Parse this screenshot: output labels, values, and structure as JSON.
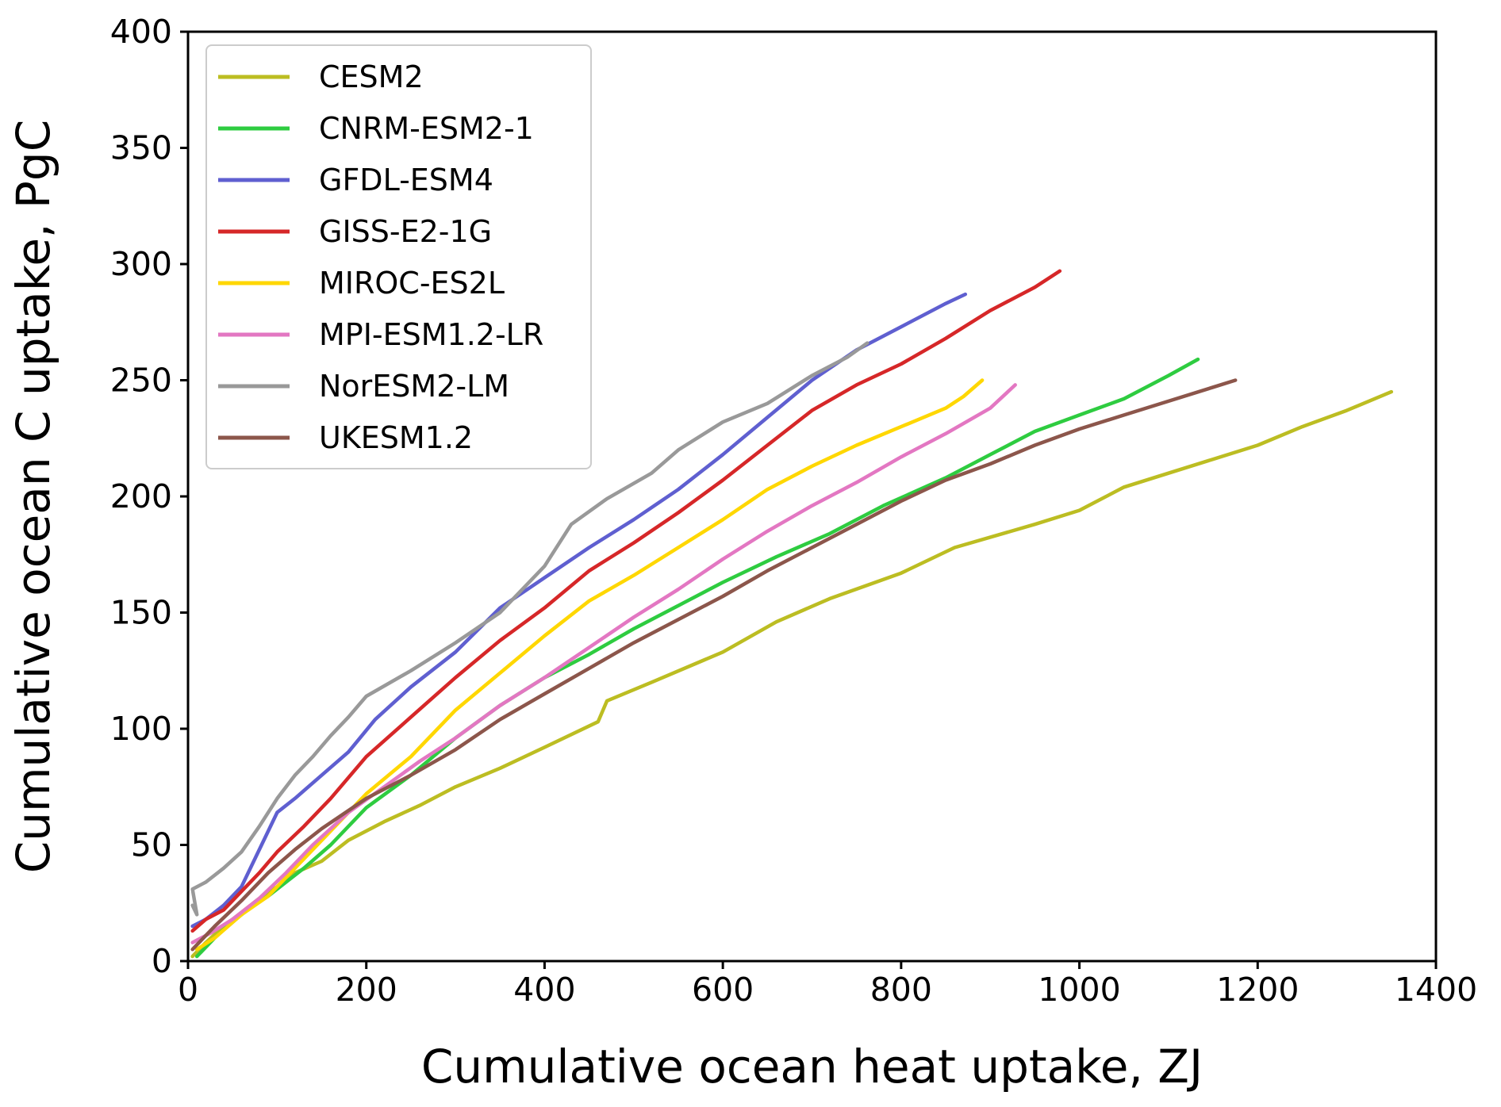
{
  "chart_data": {
    "type": "line",
    "xlabel": "Cumulative ocean heat uptake, ZJ",
    "ylabel": "Cumulative ocean C uptake, PgC",
    "xlim": [
      0,
      1400
    ],
    "ylim": [
      0,
      400
    ],
    "xticks": [
      0,
      200,
      400,
      600,
      800,
      1000,
      1200,
      1400
    ],
    "yticks": [
      0,
      50,
      100,
      150,
      200,
      250,
      300,
      350,
      400
    ],
    "grid": false,
    "legend_position": "upper-left",
    "series": [
      {
        "name": "CESM2",
        "color": "#bcbd22",
        "points": [
          [
            5,
            2
          ],
          [
            20,
            8
          ],
          [
            40,
            15
          ],
          [
            60,
            21
          ],
          [
            80,
            27
          ],
          [
            100,
            32
          ],
          [
            120,
            38
          ],
          [
            150,
            43
          ],
          [
            180,
            52
          ],
          [
            220,
            60
          ],
          [
            260,
            67
          ],
          [
            300,
            75
          ],
          [
            350,
            83
          ],
          [
            400,
            92
          ],
          [
            460,
            103
          ],
          [
            470,
            112
          ],
          [
            520,
            120
          ],
          [
            600,
            133
          ],
          [
            660,
            146
          ],
          [
            720,
            156
          ],
          [
            800,
            167
          ],
          [
            860,
            178
          ],
          [
            950,
            188
          ],
          [
            1000,
            194
          ],
          [
            1050,
            204
          ],
          [
            1100,
            210
          ],
          [
            1150,
            216
          ],
          [
            1200,
            222
          ],
          [
            1250,
            230
          ],
          [
            1300,
            237
          ],
          [
            1350,
            245
          ]
        ]
      },
      {
        "name": "CNRM-ESM2-1",
        "color": "#2ecc40",
        "points": [
          [
            10,
            2
          ],
          [
            30,
            10
          ],
          [
            50,
            17
          ],
          [
            70,
            23
          ],
          [
            90,
            28
          ],
          [
            110,
            34
          ],
          [
            130,
            40
          ],
          [
            160,
            50
          ],
          [
            200,
            66
          ],
          [
            250,
            80
          ],
          [
            300,
            96
          ],
          [
            350,
            110
          ],
          [
            400,
            122
          ],
          [
            450,
            132
          ],
          [
            500,
            143
          ],
          [
            550,
            153
          ],
          [
            600,
            163
          ],
          [
            660,
            174
          ],
          [
            720,
            184
          ],
          [
            780,
            196
          ],
          [
            850,
            208
          ],
          [
            900,
            218
          ],
          [
            950,
            228
          ],
          [
            1000,
            235
          ],
          [
            1050,
            242
          ],
          [
            1100,
            252
          ],
          [
            1133,
            259
          ]
        ]
      },
      {
        "name": "GFDL-ESM4",
        "color": "#5f5fd0",
        "points": [
          [
            5,
            15
          ],
          [
            20,
            18
          ],
          [
            40,
            24
          ],
          [
            60,
            32
          ],
          [
            80,
            48
          ],
          [
            100,
            64
          ],
          [
            120,
            70
          ],
          [
            150,
            80
          ],
          [
            180,
            90
          ],
          [
            210,
            104
          ],
          [
            250,
            118
          ],
          [
            300,
            133
          ],
          [
            350,
            152
          ],
          [
            400,
            165
          ],
          [
            450,
            178
          ],
          [
            500,
            190
          ],
          [
            550,
            203
          ],
          [
            600,
            218
          ],
          [
            650,
            234
          ],
          [
            700,
            250
          ],
          [
            750,
            263
          ],
          [
            800,
            273
          ],
          [
            850,
            283
          ],
          [
            872,
            287
          ]
        ]
      },
      {
        "name": "GISS-E2-1G",
        "color": "#d62728",
        "points": [
          [
            5,
            13
          ],
          [
            20,
            18
          ],
          [
            40,
            22
          ],
          [
            60,
            30
          ],
          [
            80,
            38
          ],
          [
            100,
            47
          ],
          [
            130,
            58
          ],
          [
            160,
            70
          ],
          [
            200,
            88
          ],
          [
            250,
            105
          ],
          [
            300,
            122
          ],
          [
            350,
            138
          ],
          [
            400,
            152
          ],
          [
            450,
            168
          ],
          [
            500,
            180
          ],
          [
            550,
            193
          ],
          [
            600,
            207
          ],
          [
            650,
            222
          ],
          [
            700,
            237
          ],
          [
            750,
            248
          ],
          [
            800,
            257
          ],
          [
            850,
            268
          ],
          [
            900,
            280
          ],
          [
            950,
            290
          ],
          [
            978,
            297
          ]
        ]
      },
      {
        "name": "MIROC-ES2L",
        "color": "#ffd700",
        "points": [
          [
            10,
            5
          ],
          [
            30,
            10
          ],
          [
            60,
            20
          ],
          [
            90,
            28
          ],
          [
            120,
            40
          ],
          [
            160,
            56
          ],
          [
            200,
            72
          ],
          [
            250,
            88
          ],
          [
            300,
            108
          ],
          [
            350,
            124
          ],
          [
            400,
            140
          ],
          [
            450,
            155
          ],
          [
            500,
            166
          ],
          [
            550,
            178
          ],
          [
            600,
            190
          ],
          [
            650,
            203
          ],
          [
            700,
            213
          ],
          [
            750,
            222
          ],
          [
            800,
            230
          ],
          [
            850,
            238
          ],
          [
            870,
            243
          ],
          [
            891,
            250
          ]
        ]
      },
      {
        "name": "MPI-ESM1.2-LR",
        "color": "#e377c2",
        "points": [
          [
            5,
            8
          ],
          [
            25,
            12
          ],
          [
            50,
            18
          ],
          [
            80,
            27
          ],
          [
            110,
            38
          ],
          [
            140,
            50
          ],
          [
            180,
            64
          ],
          [
            220,
            75
          ],
          [
            260,
            86
          ],
          [
            300,
            96
          ],
          [
            350,
            110
          ],
          [
            400,
            122
          ],
          [
            450,
            135
          ],
          [
            500,
            148
          ],
          [
            550,
            160
          ],
          [
            600,
            173
          ],
          [
            650,
            185
          ],
          [
            700,
            196
          ],
          [
            750,
            206
          ],
          [
            800,
            217
          ],
          [
            850,
            227
          ],
          [
            900,
            238
          ],
          [
            928,
            248
          ]
        ]
      },
      {
        "name": "NorESM2-LM",
        "color": "#999999",
        "points": [
          [
            5,
            24
          ],
          [
            10,
            20
          ],
          [
            5,
            31
          ],
          [
            20,
            34
          ],
          [
            40,
            40
          ],
          [
            60,
            47
          ],
          [
            80,
            58
          ],
          [
            100,
            70
          ],
          [
            120,
            80
          ],
          [
            140,
            88
          ],
          [
            160,
            97
          ],
          [
            180,
            105
          ],
          [
            200,
            114
          ],
          [
            250,
            125
          ],
          [
            300,
            137
          ],
          [
            350,
            150
          ],
          [
            400,
            170
          ],
          [
            430,
            188
          ],
          [
            470,
            199
          ],
          [
            520,
            210
          ],
          [
            550,
            220
          ],
          [
            600,
            232
          ],
          [
            650,
            240
          ],
          [
            700,
            252
          ],
          [
            740,
            260
          ],
          [
            762,
            266
          ]
        ]
      },
      {
        "name": "UKESM1.2",
        "color": "#8c564b",
        "points": [
          [
            5,
            5
          ],
          [
            30,
            15
          ],
          [
            60,
            26
          ],
          [
            90,
            38
          ],
          [
            120,
            48
          ],
          [
            150,
            57
          ],
          [
            200,
            70
          ],
          [
            250,
            80
          ],
          [
            300,
            91
          ],
          [
            350,
            104
          ],
          [
            400,
            115
          ],
          [
            450,
            126
          ],
          [
            500,
            137
          ],
          [
            550,
            147
          ],
          [
            600,
            157
          ],
          [
            650,
            168
          ],
          [
            700,
            178
          ],
          [
            750,
            188
          ],
          [
            800,
            198
          ],
          [
            850,
            207
          ],
          [
            900,
            214
          ],
          [
            950,
            222
          ],
          [
            1000,
            229
          ],
          [
            1050,
            235
          ],
          [
            1100,
            241
          ],
          [
            1150,
            247
          ],
          [
            1175,
            250
          ]
        ]
      }
    ]
  }
}
